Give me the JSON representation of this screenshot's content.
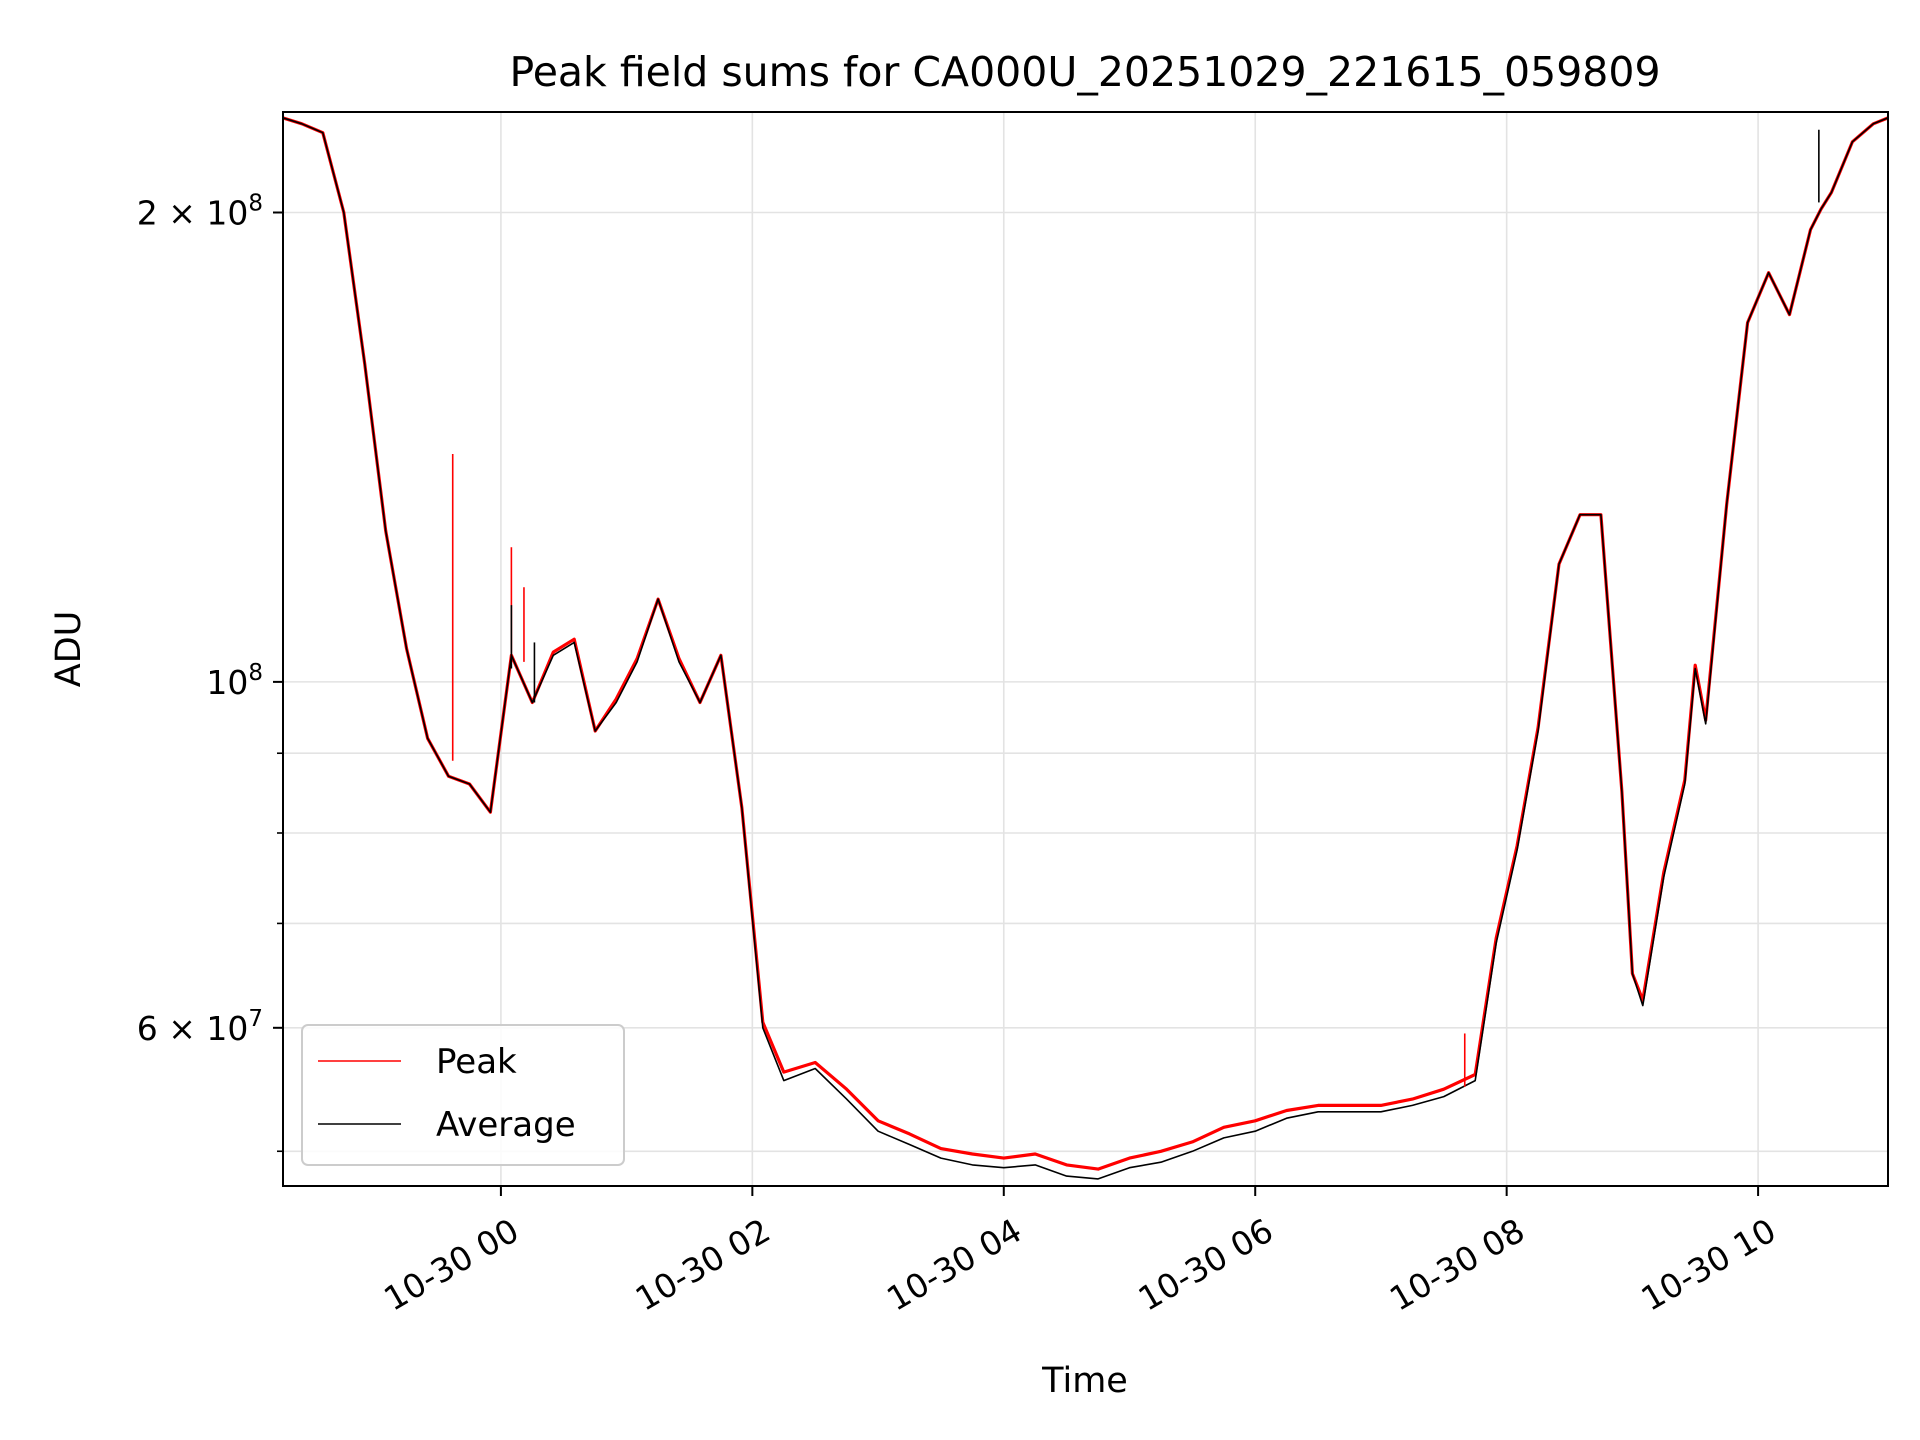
{
  "chart_data": {
    "type": "line",
    "title": "Peak field sums for CA000U_20251029_221615_059809",
    "xlabel": "Time",
    "ylabel": "ADU",
    "yscale": "log",
    "ylim": [
      47500000,
      232000000
    ],
    "xlim": [
      "2025-10-29T22:16:00",
      "2025-10-30T11:02:00"
    ],
    "grid": true,
    "legend_position": "lower-left",
    "x_ticks": [
      "2025-10-30T00:00",
      "2025-10-30T02:00",
      "2025-10-30T04:00",
      "2025-10-30T06:00",
      "2025-10-30T08:00",
      "2025-10-30T10:00"
    ],
    "x_tick_labels": [
      "10-30 00",
      "10-30 02",
      "10-30 04",
      "10-30 06",
      "10-30 08",
      "10-30 10"
    ],
    "y_ticks": [
      60000000,
      100000000,
      200000000
    ],
    "y_tick_labels": [
      {
        "mantissa": "6",
        "exponent": "7"
      },
      {
        "mantissa": "",
        "exponent": "8"
      },
      {
        "mantissa": "2",
        "exponent": "8"
      }
    ],
    "y_minor_ticks": [
      50000000,
      70000000,
      80000000,
      90000000
    ],
    "series": [
      {
        "name": "Average",
        "color": "#000000",
        "x": [
          "2025-10-29T22:16",
          "2025-10-29T22:25",
          "2025-10-29T22:35",
          "2025-10-29T22:45",
          "2025-10-29T22:55",
          "2025-10-29T23:05",
          "2025-10-29T23:15",
          "2025-10-29T23:25",
          "2025-10-29T23:35",
          "2025-10-29T23:45",
          "2025-10-29T23:55",
          "2025-10-30T00:05",
          "2025-10-30T00:15",
          "2025-10-30T00:25",
          "2025-10-30T00:35",
          "2025-10-30T00:45",
          "2025-10-30T00:55",
          "2025-10-30T01:05",
          "2025-10-30T01:15",
          "2025-10-30T01:25",
          "2025-10-30T01:35",
          "2025-10-30T01:45",
          "2025-10-30T01:55",
          "2025-10-30T02:05",
          "2025-10-30T02:15",
          "2025-10-30T02:30",
          "2025-10-30T02:45",
          "2025-10-30T03:00",
          "2025-10-30T03:15",
          "2025-10-30T03:30",
          "2025-10-30T03:45",
          "2025-10-30T04:00",
          "2025-10-30T04:15",
          "2025-10-30T04:30",
          "2025-10-30T04:45",
          "2025-10-30T05:00",
          "2025-10-30T05:15",
          "2025-10-30T05:30",
          "2025-10-30T05:45",
          "2025-10-30T06:00",
          "2025-10-30T06:15",
          "2025-10-30T06:30",
          "2025-10-30T06:45",
          "2025-10-30T07:00",
          "2025-10-30T07:15",
          "2025-10-30T07:30",
          "2025-10-30T07:45",
          "2025-10-30T07:55",
          "2025-10-30T08:05",
          "2025-10-30T08:15",
          "2025-10-30T08:25",
          "2025-10-30T08:35",
          "2025-10-30T08:45",
          "2025-10-30T08:55",
          "2025-10-30T09:00",
          "2025-10-30T09:05",
          "2025-10-30T09:15",
          "2025-10-30T09:25",
          "2025-10-30T09:30",
          "2025-10-30T09:35",
          "2025-10-30T09:45",
          "2025-10-30T09:55",
          "2025-10-30T10:05",
          "2025-10-30T10:15",
          "2025-10-30T10:25",
          "2025-10-30T10:30",
          "2025-10-30T10:35",
          "2025-10-30T10:45",
          "2025-10-30T10:55",
          "2025-10-30T11:02"
        ],
        "values": [
          230000000,
          228000000,
          225000000,
          200000000,
          160000000,
          125000000,
          105000000,
          92000000,
          87000000,
          86000000,
          82500000,
          104000000,
          97000000,
          104000000,
          106000000,
          93000000,
          97000000,
          103000000,
          113000000,
          103000000,
          97000000,
          104000000,
          83000000,
          60000000,
          55500000,
          56500000,
          54000000,
          51500000,
          50500000,
          49500000,
          49000000,
          48800000,
          49000000,
          48200000,
          48000000,
          48800000,
          49200000,
          50000000,
          51000000,
          51500000,
          52500000,
          53000000,
          53000000,
          53000000,
          53500000,
          54200000,
          55500000,
          68000000,
          78000000,
          93000000,
          119000000,
          128000000,
          128000000,
          85000000,
          65000000,
          62000000,
          75000000,
          86000000,
          102000000,
          94000000,
          130000000,
          170000000,
          183000000,
          172000000,
          195000000,
          201000000,
          206000000,
          222000000,
          228000000,
          230000000
        ]
      },
      {
        "name": "Peak",
        "color": "#ff0000",
        "x": [
          "2025-10-29T22:16",
          "2025-10-29T22:25",
          "2025-10-29T22:35",
          "2025-10-29T22:45",
          "2025-10-29T22:55",
          "2025-10-29T23:05",
          "2025-10-29T23:15",
          "2025-10-29T23:25",
          "2025-10-29T23:35",
          "2025-10-29T23:45",
          "2025-10-29T23:55",
          "2025-10-30T00:05",
          "2025-10-30T00:15",
          "2025-10-30T00:25",
          "2025-10-30T00:35",
          "2025-10-30T00:45",
          "2025-10-30T00:55",
          "2025-10-30T01:05",
          "2025-10-30T01:15",
          "2025-10-30T01:25",
          "2025-10-30T01:35",
          "2025-10-30T01:45",
          "2025-10-30T01:55",
          "2025-10-30T02:05",
          "2025-10-30T02:15",
          "2025-10-30T02:30",
          "2025-10-30T02:45",
          "2025-10-30T03:00",
          "2025-10-30T03:15",
          "2025-10-30T03:30",
          "2025-10-30T03:45",
          "2025-10-30T04:00",
          "2025-10-30T04:15",
          "2025-10-30T04:30",
          "2025-10-30T04:45",
          "2025-10-30T05:00",
          "2025-10-30T05:15",
          "2025-10-30T05:30",
          "2025-10-30T05:45",
          "2025-10-30T06:00",
          "2025-10-30T06:15",
          "2025-10-30T06:30",
          "2025-10-30T06:45",
          "2025-10-30T07:00",
          "2025-10-30T07:15",
          "2025-10-30T07:30",
          "2025-10-30T07:45",
          "2025-10-30T07:55",
          "2025-10-30T08:05",
          "2025-10-30T08:15",
          "2025-10-30T08:25",
          "2025-10-30T08:35",
          "2025-10-30T08:45",
          "2025-10-30T08:55",
          "2025-10-30T09:00",
          "2025-10-30T09:05",
          "2025-10-30T09:15",
          "2025-10-30T09:25",
          "2025-10-30T09:30",
          "2025-10-30T09:35",
          "2025-10-30T09:45",
          "2025-10-30T09:55",
          "2025-10-30T10:05",
          "2025-10-30T10:15",
          "2025-10-30T10:25",
          "2025-10-30T10:30",
          "2025-10-30T10:35",
          "2025-10-30T10:45",
          "2025-10-30T10:55",
          "2025-10-30T11:02"
        ],
        "values": [
          230000000,
          228000000,
          225000000,
          200000000,
          160000000,
          125000000,
          105000000,
          92000000,
          87000000,
          86000000,
          82500000,
          104000000,
          97000000,
          104500000,
          106500000,
          93000000,
          97500000,
          103500000,
          113000000,
          103500000,
          97000000,
          104000000,
          83000000,
          60500000,
          56200000,
          57000000,
          54800000,
          52300000,
          51300000,
          50200000,
          49800000,
          49500000,
          49800000,
          49000000,
          48700000,
          49500000,
          50000000,
          50700000,
          51800000,
          52300000,
          53100000,
          53500000,
          53500000,
          53500000,
          54000000,
          54800000,
          56000000,
          68500000,
          78500000,
          93500000,
          119000000,
          128000000,
          128000000,
          85000000,
          65000000,
          62500000,
          75500000,
          86500000,
          102500000,
          94500000,
          130000000,
          170000000,
          183000000,
          172000000,
          195000000,
          201000000,
          206000000,
          222000000,
          228000000,
          230000000
        ]
      }
    ],
    "spikes": [
      {
        "series": "Peak",
        "x": "2025-10-29T23:37",
        "from": 89000000,
        "to": 140000000
      },
      {
        "series": "Peak",
        "x": "2025-10-30T00:05",
        "from": 104000000,
        "to": 122000000
      },
      {
        "series": "Peak",
        "x": "2025-10-30T00:11",
        "from": 103000000,
        "to": 115000000
      },
      {
        "series": "Average",
        "x": "2025-10-30T00:05",
        "from": 102000000,
        "to": 112000000
      },
      {
        "series": "Average",
        "x": "2025-10-30T00:16",
        "from": 97000000,
        "to": 106000000
      },
      {
        "series": "Peak",
        "x": "2025-10-30T07:40",
        "from": 55000000,
        "to": 59500000
      },
      {
        "series": "Average",
        "x": "2025-10-30T10:29",
        "from": 203000000,
        "to": 226000000
      }
    ]
  }
}
